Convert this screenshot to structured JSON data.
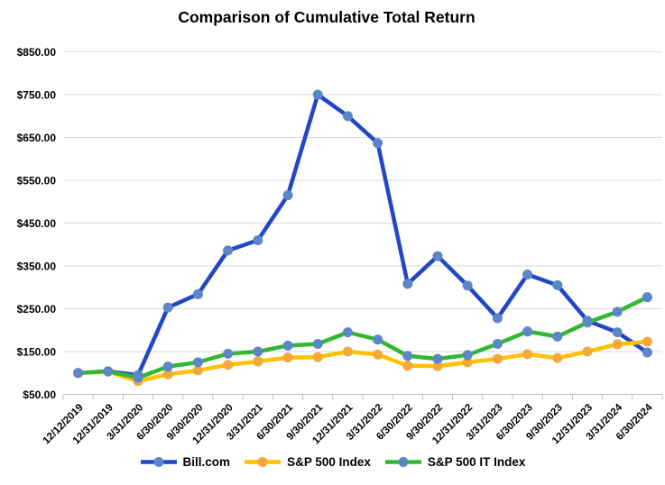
{
  "chart_data": {
    "type": "line",
    "title": "Comparison of Cumulative Total Return",
    "categories": [
      "12/12/2019",
      "12/31/2019",
      "3/31/2020",
      "6/30/2020",
      "9/30/2020",
      "12/31/2020",
      "3/31/2021",
      "6/30/2021",
      "9/30/2021",
      "12/31/2021",
      "3/31/2022",
      "6/30/2022",
      "9/30/2022",
      "12/31/2022",
      "3/31/2023",
      "6/30/2023",
      "9/30/2023",
      "12/31/2023",
      "3/31/2024",
      "6/30/2024"
    ],
    "series": [
      {
        "name": "Bill.com",
        "line_color": "#2247C6",
        "marker_color": "#5C86C8",
        "values": [
          100,
          104,
          95,
          253,
          284,
          386,
          410,
          515,
          750,
          700,
          637,
          308,
          373,
          304,
          228,
          330,
          305,
          222,
          195,
          148
        ]
      },
      {
        "name": "S&P 500 Index",
        "line_color": "#FFC000",
        "marker_color": "#F2A93C",
        "values": [
          100,
          103,
          81,
          97,
          106,
          119,
          127,
          136,
          137,
          150,
          143,
          117,
          116,
          125,
          133,
          144,
          135,
          150,
          167,
          173
        ]
      },
      {
        "name": "S&P 500 IT Index",
        "line_color": "#33B733",
        "marker_color": "#5C86C8",
        "values": [
          100,
          104,
          89,
          115,
          125,
          145,
          150,
          164,
          168,
          195,
          178,
          140,
          133,
          142,
          168,
          197,
          185,
          218,
          243,
          277
        ]
      }
    ],
    "ylim": [
      50,
      850
    ],
    "y_tick_values": [
      850,
      750,
      650,
      550,
      450,
      350,
      250,
      150,
      50
    ],
    "y_tick_labels": [
      "$850.00",
      "$750.00",
      "$650.00",
      "$550.00",
      "$450.00",
      "$350.00",
      "$250.00",
      "$150.00",
      "$50.00"
    ],
    "grid": "horizontal",
    "legend_position": "bottom",
    "gridline_color": "#D9D9D9",
    "axis_color": "#BFBFBF",
    "text_color": "#000000",
    "background_color": "#FFFFFF"
  }
}
